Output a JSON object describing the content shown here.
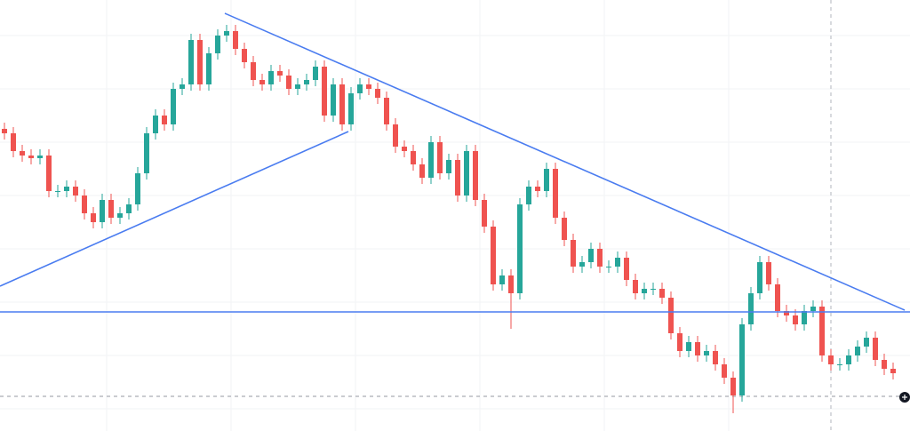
{
  "chart_data": {
    "type": "candlestick",
    "xlim": [
      -0.5,
      101.9
    ],
    "ylim": [
      0,
      485
    ],
    "up_color": "#26a69a",
    "down_color": "#ef5350",
    "open": [
      340,
      335,
      315,
      310,
      307,
      310,
      270,
      270,
      275,
      265,
      245,
      235,
      260,
      240,
      245,
      255,
      290,
      335,
      355,
      345,
      385,
      390,
      440,
      390,
      425,
      445,
      450,
      430,
      415,
      395,
      390,
      405,
      400,
      385,
      390,
      395,
      410,
      355,
      390,
      345,
      380,
      390,
      385,
      375,
      345,
      320,
      315,
      300,
      285,
      325,
      290,
      305,
      265,
      315,
      260,
      230,
      165,
      175,
      155,
      255,
      275,
      270,
      295,
      240,
      215,
      185,
      190,
      205,
      185,
      185,
      195,
      170,
      155,
      160,
      160,
      150,
      110,
      90,
      100,
      85,
      90,
      75,
      60,
      40,
      120,
      155,
      190,
      165,
      135,
      130,
      120,
      135,
      140,
      85,
      75,
      75,
      85,
      95,
      105,
      80,
      70
    ],
    "high": [
      347,
      342,
      322,
      317,
      317,
      317,
      277,
      282,
      282,
      272,
      252,
      267,
      267,
      252,
      262,
      297,
      342,
      362,
      362,
      392,
      397,
      447,
      447,
      432,
      452,
      457,
      457,
      437,
      422,
      402,
      412,
      412,
      407,
      397,
      402,
      417,
      417,
      397,
      397,
      387,
      397,
      397,
      392,
      382,
      352,
      327,
      322,
      307,
      332,
      332,
      312,
      312,
      322,
      322,
      267,
      237,
      182,
      182,
      262,
      282,
      282,
      302,
      302,
      247,
      222,
      197,
      212,
      212,
      192,
      202,
      202,
      177,
      167,
      167,
      167,
      157,
      117,
      107,
      107,
      97,
      97,
      82,
      67,
      127,
      162,
      197,
      197,
      172,
      142,
      137,
      142,
      147,
      147,
      92,
      82,
      92,
      102,
      112,
      112,
      87,
      77
    ],
    "low": [
      328,
      308,
      303,
      300,
      300,
      263,
      263,
      263,
      258,
      238,
      228,
      228,
      233,
      233,
      238,
      248,
      283,
      328,
      338,
      338,
      378,
      383,
      383,
      383,
      418,
      438,
      423,
      408,
      388,
      383,
      383,
      393,
      378,
      378,
      383,
      388,
      348,
      348,
      338,
      338,
      373,
      378,
      368,
      338,
      313,
      308,
      293,
      278,
      278,
      283,
      283,
      258,
      258,
      253,
      223,
      158,
      158,
      115,
      148,
      248,
      263,
      263,
      233,
      208,
      178,
      178,
      183,
      178,
      178,
      178,
      163,
      148,
      148,
      153,
      143,
      103,
      83,
      83,
      78,
      78,
      68,
      53,
      20,
      33,
      113,
      148,
      158,
      128,
      123,
      113,
      113,
      128,
      78,
      68,
      68,
      68,
      78,
      88,
      73,
      63,
      58
    ],
    "close": [
      335,
      315,
      310,
      307,
      310,
      270,
      270,
      275,
      265,
      245,
      235,
      260,
      240,
      245,
      255,
      290,
      335,
      355,
      345,
      385,
      390,
      440,
      390,
      425,
      445,
      450,
      430,
      415,
      395,
      390,
      405,
      400,
      385,
      390,
      395,
      410,
      355,
      390,
      345,
      380,
      390,
      385,
      375,
      345,
      320,
      315,
      300,
      285,
      325,
      290,
      305,
      265,
      315,
      260,
      230,
      165,
      175,
      155,
      255,
      275,
      270,
      295,
      240,
      215,
      185,
      190,
      205,
      185,
      185,
      195,
      170,
      155,
      160,
      160,
      150,
      110,
      90,
      100,
      85,
      90,
      75,
      60,
      40,
      120,
      155,
      190,
      165,
      135,
      130,
      120,
      135,
      140,
      85,
      75,
      75,
      85,
      95,
      105,
      80,
      70,
      65
    ],
    "trend_lines": [
      {
        "x": [
          24.8,
          101.3
        ],
        "y": [
          470,
          136
        ],
        "color": "#4a7cf0"
      },
      {
        "x": [
          -0.5,
          38.7
        ],
        "y": [
          163,
          337
        ],
        "color": "#4a7cf0"
      },
      {
        "x": [
          -0.5,
          101.9
        ],
        "y": [
          134,
          134
        ],
        "color": "#4a7cf0"
      }
    ],
    "price_line": 39,
    "crosshair_x": 93
  }
}
